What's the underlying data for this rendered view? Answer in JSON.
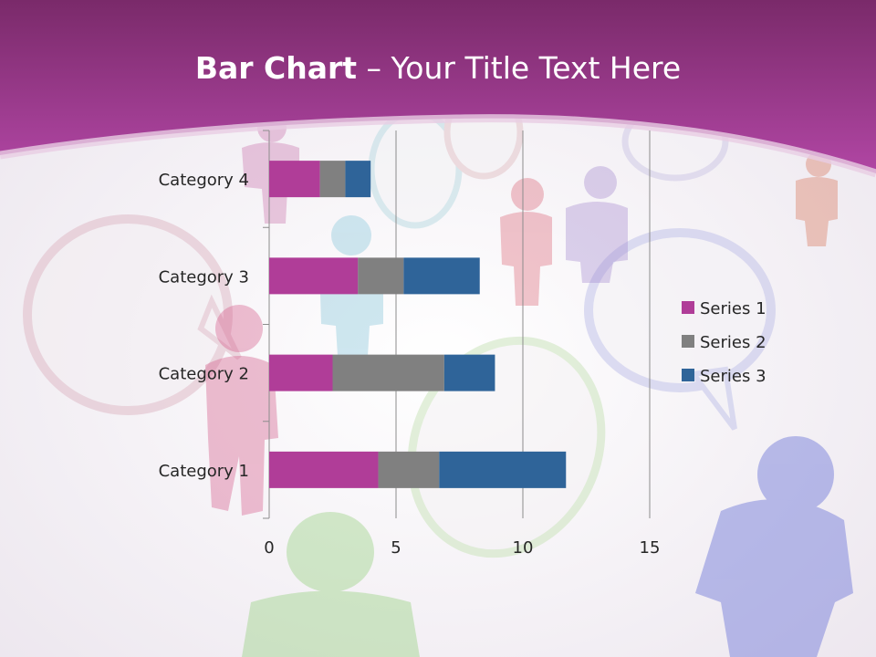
{
  "slide": {
    "title_bold": "Bar Chart",
    "title_separator": " – ",
    "title_rest": "Your Title Text Here"
  },
  "colors": {
    "banner_top": "#7a2a6a",
    "banner_bottom": "#b146a4",
    "series_1": "#b03d98",
    "series_2": "#808080",
    "series_3": "#2f6499"
  },
  "chart_data": {
    "type": "bar",
    "orientation": "horizontal",
    "stacked": true,
    "categories": [
      "Category 1",
      "Category 2",
      "Category 3",
      "Category 4"
    ],
    "series": [
      {
        "name": "Series 1",
        "values": [
          4.3,
          2.5,
          3.5,
          2.0
        ]
      },
      {
        "name": "Series 2",
        "values": [
          2.4,
          4.4,
          1.8,
          1.0
        ]
      },
      {
        "name": "Series 3",
        "values": [
          5.0,
          2.0,
          3.0,
          1.0
        ]
      }
    ],
    "xticks": [
      "0",
      "5",
      "10",
      "15"
    ],
    "xlim": [
      0,
      15
    ],
    "grid": true,
    "legend": "right"
  }
}
